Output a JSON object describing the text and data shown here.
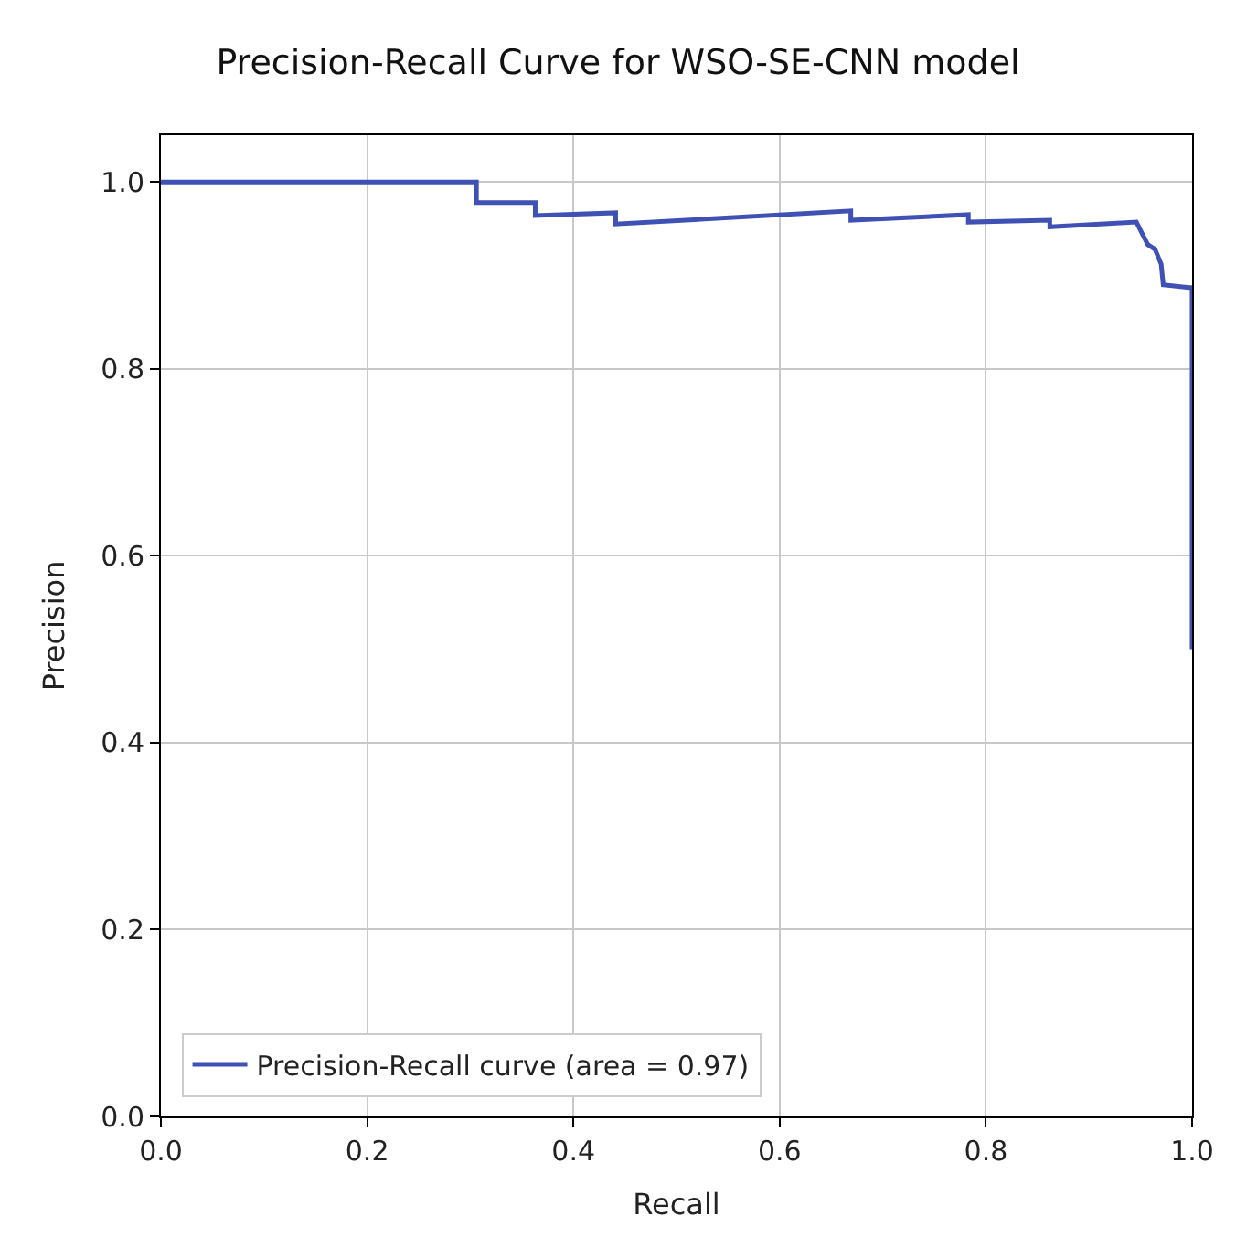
{
  "chart_data": {
    "type": "line",
    "title": "Precision-Recall Curve for WSO-SE-CNN model",
    "xlabel": "Recall",
    "ylabel": "Precision",
    "series": [
      {
        "name": "Precision-Recall curve (area = 0.97)",
        "color": "#3f51b5",
        "x": [
          0.0,
          0.306,
          0.306,
          0.363,
          0.363,
          0.441,
          0.441,
          0.669,
          0.669,
          0.783,
          0.783,
          0.862,
          0.862,
          0.946,
          0.951,
          0.957,
          0.964,
          0.97,
          0.972,
          0.997,
          1.0,
          1.0
        ],
        "values": [
          1.0,
          1.0,
          0.978,
          0.978,
          0.964,
          0.967,
          0.955,
          0.969,
          0.959,
          0.965,
          0.957,
          0.959,
          0.952,
          0.957,
          0.946,
          0.933,
          0.928,
          0.912,
          0.89,
          0.887,
          0.887,
          0.5
        ]
      }
    ],
    "xlim": [
      0.0,
      1.0
    ],
    "ylim": [
      0.0,
      1.05
    ],
    "xticks": [
      {
        "value": 0,
        "label": "0.0"
      },
      0.2,
      0.4,
      0.6,
      0.8,
      {
        "value": 1,
        "label": "1.0"
      }
    ],
    "yticks": [
      {
        "value": 0,
        "label": "0.0"
      },
      0.2,
      0.4,
      0.6,
      0.8,
      {
        "value": 1,
        "label": "1.0"
      }
    ],
    "grid": true,
    "legend": "bottom left",
    "marker": "none",
    "line_style": "solid"
  }
}
